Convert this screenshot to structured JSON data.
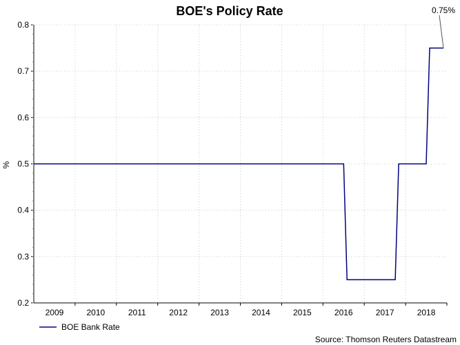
{
  "chart_data": {
    "type": "line",
    "title": "BOE's Policy Rate",
    "xlabel": "",
    "ylabel": "%",
    "ylim": [
      0.2,
      0.8
    ],
    "yticks": [
      "0.2",
      "0.3",
      "0.4",
      "0.5",
      "0.6",
      "0.7",
      "0.8"
    ],
    "xticks": [
      "2009",
      "2010",
      "2011",
      "2012",
      "2013",
      "2014",
      "2015",
      "2016",
      "2017",
      "2018"
    ],
    "grid": true,
    "legend_position": "bottom-left",
    "series": [
      {
        "name": "BOE Bank Rate",
        "color": "#000080",
        "points": [
          {
            "x": "2009-01",
            "y": 0.5
          },
          {
            "x": "2016-07",
            "y": 0.5
          },
          {
            "x": "2016-08",
            "y": 0.25
          },
          {
            "x": "2017-10",
            "y": 0.25
          },
          {
            "x": "2017-11",
            "y": 0.5
          },
          {
            "x": "2018-07",
            "y": 0.5
          },
          {
            "x": "2018-08",
            "y": 0.75
          },
          {
            "x": "2018-12",
            "y": 0.75
          }
        ]
      }
    ],
    "annotations": [
      {
        "text": "0.75%",
        "target": {
          "x": "2018-12",
          "y": 0.75
        }
      }
    ],
    "source": "Source: Thomson Reuters Datastream"
  }
}
